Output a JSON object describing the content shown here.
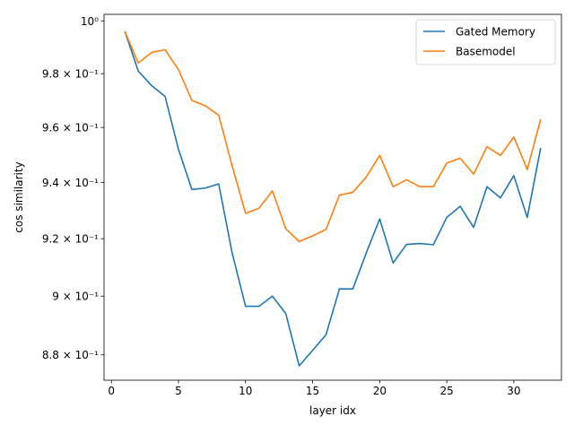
{
  "chart_data": {
    "type": "line",
    "xlabel": "layer idx",
    "ylabel": "cos similarity",
    "xlim": [
      -0.55,
      33.55
    ],
    "ylim": [
      0.8715,
      1.0025
    ],
    "yscale": "log",
    "grid": false,
    "legend": "top-right",
    "x_ticks": [
      0,
      5,
      10,
      15,
      20,
      25,
      30
    ],
    "x_tick_labels": [
      "0",
      "5",
      "10",
      "15",
      "20",
      "25",
      "30"
    ],
    "y_ticks": [
      {
        "value": 0.88,
        "label": "8.8 × 10⁻¹"
      },
      {
        "value": 0.9,
        "label": "9 × 10⁻¹"
      },
      {
        "value": 0.92,
        "label": "9.2 × 10⁻¹"
      },
      {
        "value": 0.94,
        "label": "9.4 × 10⁻¹"
      },
      {
        "value": 0.96,
        "label": "9.6 × 10⁻¹"
      },
      {
        "value": 0.98,
        "label": "9.8 × 10⁻¹"
      },
      {
        "value": 1.0,
        "label": "10⁰"
      }
    ],
    "x": [
      1,
      2,
      3,
      4,
      5,
      6,
      7,
      8,
      9,
      10,
      11,
      12,
      13,
      14,
      15,
      16,
      17,
      18,
      19,
      20,
      21,
      22,
      23,
      24,
      25,
      26,
      27,
      28,
      29,
      30,
      31,
      32
    ],
    "series": [
      {
        "name": "Gated Memory",
        "color": "#1f77b4",
        "values": [
          0.996,
          0.981,
          0.9755,
          0.9715,
          0.952,
          0.9375,
          0.938,
          0.9395,
          0.915,
          0.8965,
          0.8965,
          0.9,
          0.894,
          0.8763,
          0.8815,
          0.8868,
          0.9025,
          0.9025,
          0.915,
          0.927,
          0.9115,
          0.918,
          0.9183,
          0.9179,
          0.9275,
          0.9315,
          0.924,
          0.9385,
          0.9345,
          0.9425,
          0.9275,
          0.9525
        ]
      },
      {
        "name": "Basemodel",
        "color": "#ff7f0e",
        "values": [
          0.996,
          0.984,
          0.988,
          0.989,
          0.9815,
          0.97,
          0.968,
          0.9645,
          0.946,
          0.929,
          0.9308,
          0.937,
          0.9235,
          0.919,
          0.921,
          0.9233,
          0.9355,
          0.9365,
          0.942,
          0.9498,
          0.9385,
          0.941,
          0.9385,
          0.9385,
          0.947,
          0.9488,
          0.943,
          0.953,
          0.9498,
          0.9565,
          0.9447,
          0.963
        ]
      }
    ]
  }
}
